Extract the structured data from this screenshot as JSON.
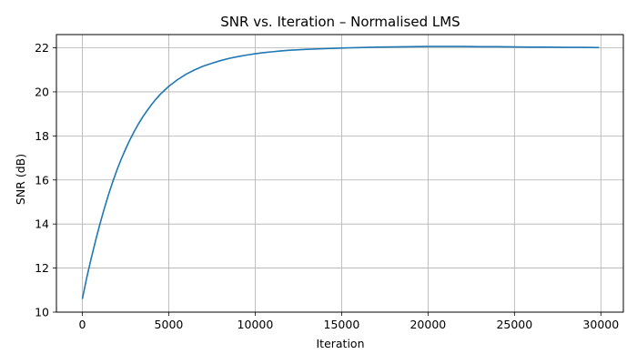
{
  "chart_data": {
    "type": "line",
    "title": "SNR vs. Iteration – Normalised LMS",
    "xlabel": "Iteration",
    "ylabel": "SNR (dB)",
    "xlim": [
      -1500,
      31300
    ],
    "ylim": [
      10,
      22.6
    ],
    "xticks": [
      0,
      5000,
      10000,
      15000,
      20000,
      25000,
      30000
    ],
    "yticks": [
      10,
      12,
      14,
      16,
      18,
      20,
      22
    ],
    "grid": true,
    "series": [
      {
        "color": "#1f77b4",
        "x": [
          0,
          250,
          500,
          750,
          1000,
          1250,
          1500,
          1750,
          2000,
          2250,
          2500,
          2750,
          3000,
          3250,
          3500,
          3750,
          4000,
          4250,
          4500,
          4750,
          5000,
          5500,
          6000,
          6500,
          7000,
          7500,
          8000,
          8500,
          9000,
          9500,
          10000,
          10500,
          11000,
          11500,
          12000,
          12500,
          13000,
          14000,
          15000,
          16000,
          17000,
          18000,
          19000,
          20000,
          21000,
          22000,
          23000,
          24000,
          25000,
          26000,
          27000,
          28000,
          29000,
          29900
        ],
        "y": [
          10.6,
          11.55,
          12.4,
          13.2,
          13.95,
          14.65,
          15.3,
          15.9,
          16.45,
          16.95,
          17.4,
          17.82,
          18.2,
          18.55,
          18.87,
          19.15,
          19.42,
          19.66,
          19.88,
          20.07,
          20.25,
          20.55,
          20.8,
          21.0,
          21.17,
          21.3,
          21.42,
          21.52,
          21.6,
          21.67,
          21.73,
          21.78,
          21.82,
          21.86,
          21.89,
          21.91,
          21.93,
          21.96,
          21.99,
          22.01,
          22.03,
          22.04,
          22.05,
          22.06,
          22.06,
          22.06,
          22.05,
          22.05,
          22.04,
          22.03,
          22.03,
          22.02,
          22.02,
          22.01
        ]
      }
    ]
  }
}
